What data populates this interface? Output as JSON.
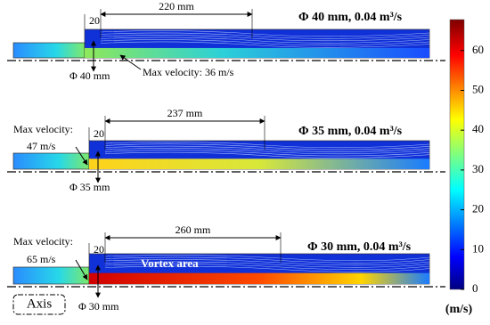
{
  "panels": [
    {
      "title": "Φ 40 mm, 0.04 m³/s",
      "length": "220 mm",
      "gap": "20",
      "diameter": "Φ 40 mm",
      "max_velocity": [
        "Max velocity: 36 m/s"
      ]
    },
    {
      "title": "Φ 35 mm, 0.04 m³/s",
      "length": "237 mm",
      "gap": "20",
      "diameter": "Φ 35 mm",
      "max_velocity": [
        "Max velocity:",
        "47 m/s"
      ]
    },
    {
      "title": "Φ 30 mm,  0.04 m³/s",
      "length": "260 mm",
      "gap": "20",
      "diameter": "Φ 30 mm",
      "max_velocity": [
        "Max velocity:",
        "65 m/s"
      ]
    }
  ],
  "vortex_label": "Vortex area",
  "axis_label": "Axis",
  "colorbar": {
    "ticks": [
      0,
      10,
      20,
      30,
      40,
      50,
      60
    ],
    "unit": "(m/s)"
  }
}
